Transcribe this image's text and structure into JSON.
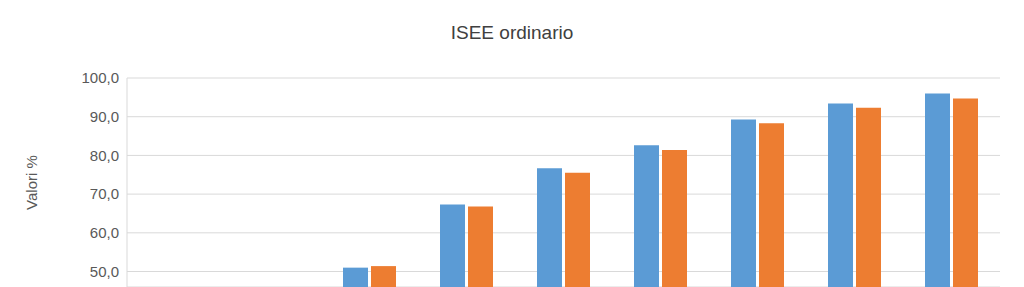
{
  "chart_data": {
    "type": "bar",
    "title": "ISEE ordinario",
    "y_label": "Valori %",
    "categories": [
      null,
      null,
      null,
      null,
      null,
      null,
      null,
      null,
      null
    ],
    "series": [
      {
        "color": "#5b9bd5",
        "values": [
          null,
          null,
          51.0,
          67.3,
          76.7,
          82.6,
          89.3,
          93.4,
          96.0
        ]
      },
      {
        "color": "#ed7d31",
        "values": [
          null,
          null,
          51.4,
          66.8,
          75.5,
          81.4,
          88.3,
          92.3,
          94.7
        ]
      }
    ],
    "ylim": [
      46,
      100
    ],
    "yticks": [
      {
        "value": 50,
        "label": "50,0"
      },
      {
        "value": 60,
        "label": "60,0"
      },
      {
        "value": 70,
        "label": "70,0"
      },
      {
        "value": 80,
        "label": "80,0"
      },
      {
        "value": 90,
        "label": "90,0"
      },
      {
        "value": 100,
        "label": "100,0"
      }
    ],
    "grid": true,
    "tick_labels": "y"
  }
}
